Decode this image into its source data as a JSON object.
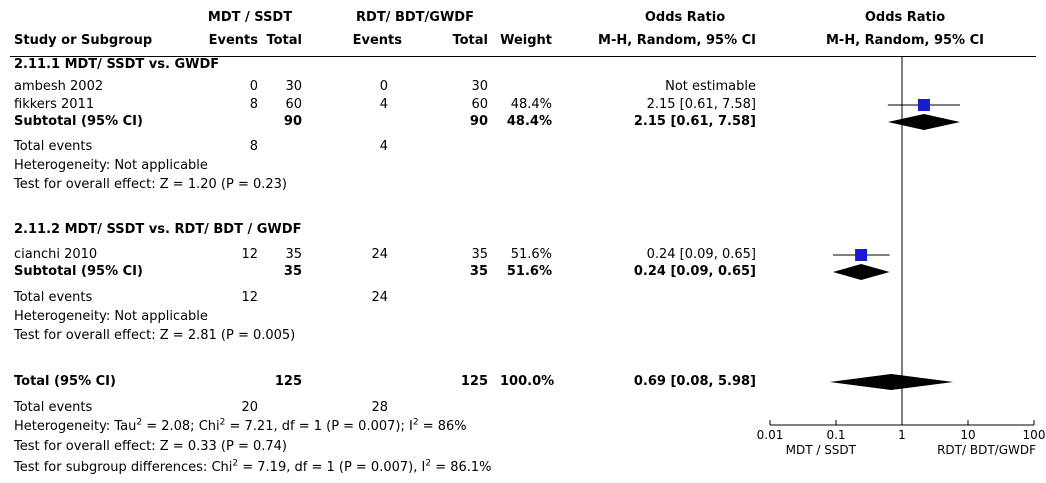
{
  "header": {
    "group_exp": "MDT / SSDT",
    "group_ctrl": "RDT/ BDT/GWDF",
    "or_title": "Odds Ratio",
    "plot_title": "Odds Ratio",
    "col_study": "Study or Subgroup",
    "col_events_exp": "Events",
    "col_total_exp": "Total",
    "col_events_ctrl": "Events",
    "col_total_ctrl": "Total",
    "col_weight": "Weight",
    "col_method": "M-H, Random, 95% CI",
    "plot_method": "M-H, Random, 95% CI"
  },
  "sub1": {
    "title": "2.11.1 MDT/ SSDT vs. GWDF",
    "studies": [
      {
        "name": "ambesh 2002",
        "e1": "0",
        "n1": "30",
        "e2": "0",
        "n2": "30",
        "weight": "",
        "ci": "Not estimable"
      },
      {
        "name": "fikkers 2011",
        "e1": "8",
        "n1": "60",
        "e2": "4",
        "n2": "60",
        "weight": "48.4%",
        "ci": "2.15 [0.61, 7.58]"
      }
    ],
    "subtotal": {
      "label": "Subtotal (95% CI)",
      "n1": "90",
      "n2": "90",
      "weight": "48.4%",
      "ci": "2.15 [0.61, 7.58]"
    },
    "total_events": {
      "label": "Total events",
      "e1": "8",
      "e2": "4"
    },
    "heterogeneity": "Heterogeneity: Not applicable",
    "overall": "Test for overall effect: Z = 1.20 (P = 0.23)"
  },
  "sub2": {
    "title": "2.11.2 MDT/ SSDT vs. RDT/ BDT / GWDF",
    "studies": [
      {
        "name": "cianchi 2010",
        "e1": "12",
        "n1": "35",
        "e2": "24",
        "n2": "35",
        "weight": "51.6%",
        "ci": "0.24 [0.09, 0.65]"
      }
    ],
    "subtotal": {
      "label": "Subtotal (95% CI)",
      "n1": "35",
      "n2": "35",
      "weight": "51.6%",
      "ci": "0.24 [0.09, 0.65]"
    },
    "total_events": {
      "label": "Total events",
      "e1": "12",
      "e2": "24"
    },
    "heterogeneity": "Heterogeneity: Not applicable",
    "overall": "Test for overall effect: Z = 2.81 (P = 0.005)"
  },
  "total": {
    "label": "Total (95% CI)",
    "n1": "125",
    "n2": "125",
    "weight": "100.0%",
    "ci": "0.69 [0.08, 5.98]",
    "events_label": "Total events",
    "e1": "20",
    "e2": "28",
    "heterogeneity_pre": "Heterogeneity: Tau",
    "heterogeneity_a": "2",
    "heterogeneity_mid": " = 2.08; Chi",
    "heterogeneity_b": "2",
    "heterogeneity_mid2": " = 7.21, df = 1 (P = 0.007); I",
    "heterogeneity_c": "2",
    "heterogeneity_post": " = 86%",
    "overall": "Test for overall effect: Z = 0.33 (P = 0.74)",
    "subgroup_pre": "Test for subgroup differences: Chi",
    "subgroup_a": "2",
    "subgroup_mid": " = 7.19, df = 1 (P = 0.007), I",
    "subgroup_b": "2",
    "subgroup_post": " = 86.1%"
  },
  "axis": {
    "ticks": [
      "0.01",
      "0.1",
      "1",
      "10",
      "100"
    ],
    "favours_left": "MDT / SSDT",
    "favours_right": "RDT/ BDT/GWDF"
  },
  "colors": {
    "square": "#1a1ad0",
    "diamond": "#000000"
  },
  "chart_data": {
    "type": "forest",
    "scale": "log",
    "xlim": [
      0.01,
      100
    ],
    "null_line": 1,
    "studies": [
      {
        "name": "fikkers 2011",
        "or": 2.15,
        "lo": 0.61,
        "hi": 7.58,
        "weight": 48.4
      },
      {
        "name": "cianchi 2010",
        "or": 0.24,
        "lo": 0.09,
        "hi": 0.65,
        "weight": 51.6
      }
    ],
    "pooled": [
      {
        "name": "Subtotal (95% CI)",
        "or": 2.15,
        "lo": 0.61,
        "hi": 7.58
      },
      {
        "name": "Subtotal (95% CI)",
        "or": 0.24,
        "lo": 0.09,
        "hi": 0.65
      },
      {
        "name": "Total (95% CI)",
        "or": 0.69,
        "lo": 0.08,
        "hi": 5.98
      }
    ]
  }
}
